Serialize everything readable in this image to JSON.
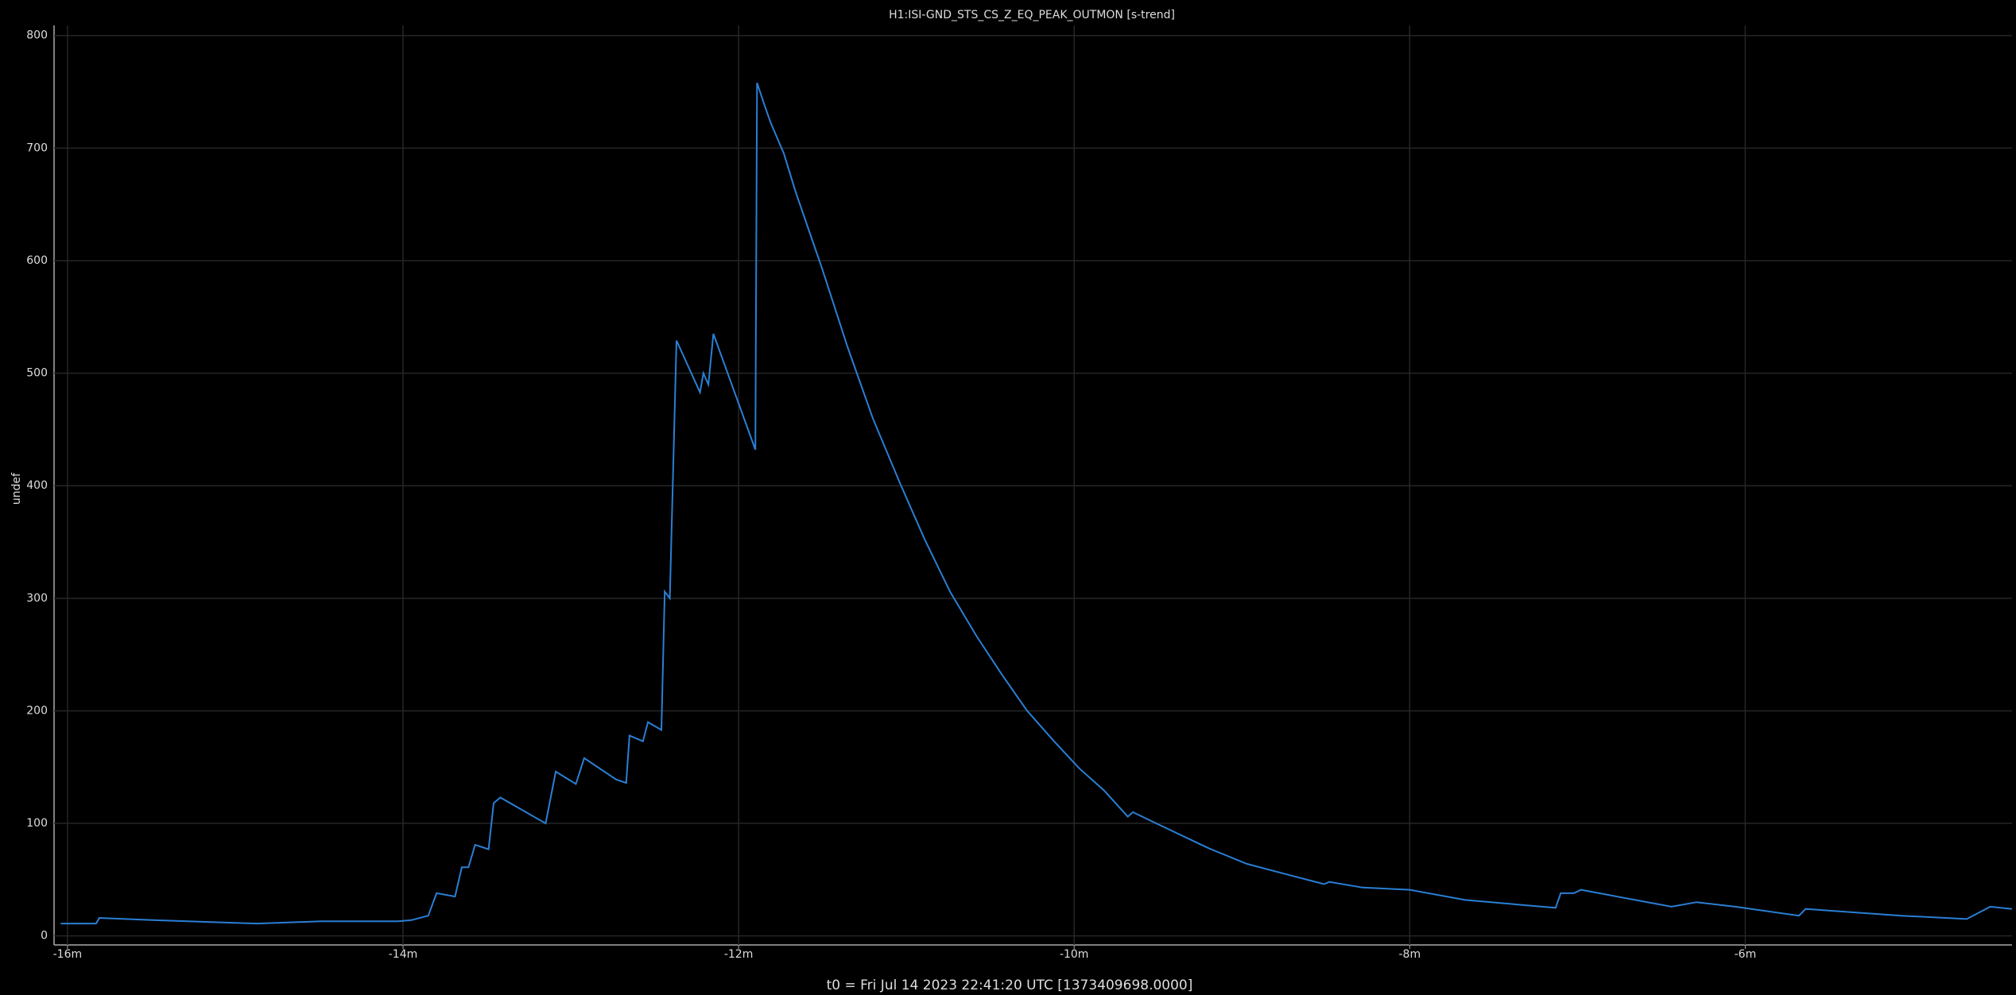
{
  "chart_data": {
    "type": "line",
    "title": "H1:ISI-GND_STS_CS_Z_EQ_PEAK_OUTMON [s-trend]",
    "xlabel": "t0 = Fri Jul 14 2023 22:41:20 UTC [1373409698.0000]",
    "ylabel": "undef",
    "x": [
      -16.04,
      -15.83,
      -15.81,
      -15.49,
      -14.87,
      -14.49,
      -14.03,
      -13.95,
      -13.85,
      -13.8,
      -13.69,
      -13.65,
      -13.61,
      -13.57,
      -13.49,
      -13.46,
      -13.42,
      -13.15,
      -13.09,
      -12.97,
      -12.92,
      -12.73,
      -12.67,
      -12.65,
      -12.57,
      -12.54,
      -12.46,
      -12.44,
      -12.41,
      -12.37,
      -12.23,
      -12.21,
      -12.18,
      -12.15,
      -11.9,
      -11.89,
      -11.85,
      -11.81,
      -11.73,
      -11.66,
      -11.5,
      -11.35,
      -11.2,
      -11.04,
      -10.89,
      -10.74,
      -10.58,
      -10.43,
      -10.28,
      -10.12,
      -9.97,
      -9.82,
      -9.68,
      -9.65,
      -9.51,
      -9.2,
      -8.97,
      -8.74,
      -8.51,
      -8.48,
      -8.28,
      -8.0,
      -7.67,
      -7.21,
      -7.13,
      -7.1,
      -7.02,
      -6.98,
      -6.44,
      -6.29,
      -6.06,
      -5.68,
      -5.64,
      -5.07,
      -4.68,
      -4.54,
      -4.41
    ],
    "series": [
      {
        "color": "#2a7fd4",
        "values": [
          11,
          11,
          16,
          14,
          11,
          13,
          13,
          14,
          18,
          38,
          35,
          61,
          61,
          81,
          77,
          118,
          123,
          100,
          146,
          135,
          158,
          139,
          136,
          178,
          173,
          190,
          183,
          306,
          300,
          529,
          483,
          500,
          490,
          535,
          432,
          758,
          740,
          723,
          695,
          661,
          592,
          523,
          460,
          403,
          352,
          306,
          266,
          232,
          200,
          173,
          149,
          129,
          106,
          110,
          100,
          78,
          64,
          55,
          46,
          48,
          43,
          41,
          32,
          26,
          25,
          38,
          38,
          41,
          26,
          30,
          26,
          18,
          24,
          18,
          15,
          26,
          24
        ]
      }
    ],
    "xlim": [
      -16.08,
      -4.41
    ],
    "ylim": [
      -8,
      809
    ],
    "xticks": [
      {
        "value": -16,
        "label": "-16m"
      },
      {
        "value": -14,
        "label": "-14m"
      },
      {
        "value": -12,
        "label": "-12m"
      },
      {
        "value": -10,
        "label": "-10m"
      },
      {
        "value": -8,
        "label": "-8m"
      },
      {
        "value": -6,
        "label": "-6m"
      }
    ],
    "yticks": [
      0,
      100,
      200,
      300,
      400,
      500,
      600,
      700,
      800
    ],
    "grid": true
  }
}
